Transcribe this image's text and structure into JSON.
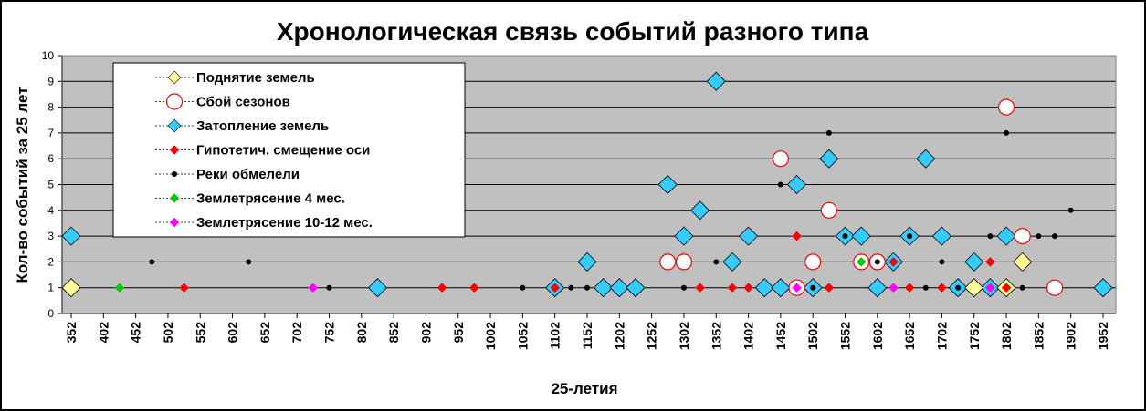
{
  "chart_data": {
    "type": "scatter",
    "title": "Хронологическая связь событий разного типа",
    "xlabel": "25-летия",
    "ylabel": "Кол-во событий за 25 лет",
    "x_categories": [
      "352",
      "402",
      "452",
      "502",
      "552",
      "602",
      "652",
      "702",
      "752",
      "802",
      "852",
      "902",
      "952",
      "1002",
      "1052",
      "1102",
      "1152",
      "1202",
      "1252",
      "1302",
      "1352",
      "1402",
      "1452",
      "1502",
      "1552",
      "1602",
      "1652",
      "1702",
      "1752",
      "1802",
      "1852",
      "1902",
      "1952"
    ],
    "x_range": [
      352,
      1952
    ],
    "ylim": [
      0,
      10
    ],
    "yticks": [
      "0",
      "1",
      "2",
      "3",
      "4",
      "5",
      "6",
      "7",
      "8",
      "9",
      "10"
    ],
    "grid": true,
    "legend_position": "top-left",
    "colors": {
      "plot_bg": "#c0c0c0",
      "rise": "#ffff99",
      "season": "#ff0000",
      "flood": "#33ccff",
      "axis_shift": "#ff0000",
      "rivers": "#000000",
      "eq4": "#00cc00",
      "eq10": "#ff00ff"
    },
    "series": [
      {
        "key": "rise",
        "name": "Поднятие земель",
        "marker": "diamond",
        "points": [
          [
            352,
            1
          ],
          [
            1752,
            1
          ],
          [
            1802,
            1
          ],
          [
            1827,
            2
          ]
        ]
      },
      {
        "key": "season",
        "name": "Сбой сезонов",
        "marker": "circle",
        "points": [
          [
            1277,
            2
          ],
          [
            1302,
            2
          ],
          [
            1452,
            6
          ],
          [
            1477,
            1
          ],
          [
            1502,
            2
          ],
          [
            1527,
            4
          ],
          [
            1577,
            2
          ],
          [
            1602,
            2
          ],
          [
            1802,
            8
          ],
          [
            1827,
            3
          ],
          [
            1877,
            1
          ]
        ]
      },
      {
        "key": "flood",
        "name": "Затопление земель",
        "marker": "diamond",
        "points": [
          [
            352,
            3
          ],
          [
            827,
            1
          ],
          [
            1102,
            1
          ],
          [
            1152,
            2
          ],
          [
            1177,
            1
          ],
          [
            1202,
            1
          ],
          [
            1227,
            1
          ],
          [
            1277,
            5
          ],
          [
            1302,
            3
          ],
          [
            1327,
            4
          ],
          [
            1352,
            9
          ],
          [
            1377,
            2
          ],
          [
            1402,
            3
          ],
          [
            1427,
            1
          ],
          [
            1452,
            1
          ],
          [
            1477,
            5
          ],
          [
            1502,
            1
          ],
          [
            1527,
            6
          ],
          [
            1552,
            3
          ],
          [
            1577,
            3
          ],
          [
            1602,
            1
          ],
          [
            1627,
            2
          ],
          [
            1652,
            3
          ],
          [
            1677,
            6
          ],
          [
            1702,
            3
          ],
          [
            1727,
            1
          ],
          [
            1752,
            2
          ],
          [
            1777,
            1
          ],
          [
            1802,
            3
          ],
          [
            1952,
            1
          ]
        ]
      },
      {
        "key": "axis_shift",
        "name": "Гипотетич. смещение оси",
        "marker": "smalldiamond",
        "points": [
          [
            527,
            1
          ],
          [
            927,
            1
          ],
          [
            977,
            1
          ],
          [
            1102,
            1
          ],
          [
            1327,
            1
          ],
          [
            1377,
            1
          ],
          [
            1402,
            1
          ],
          [
            1477,
            3
          ],
          [
            1527,
            1
          ],
          [
            1627,
            2
          ],
          [
            1652,
            1
          ],
          [
            1702,
            1
          ],
          [
            1777,
            2
          ],
          [
            1802,
            1
          ]
        ]
      },
      {
        "key": "rivers",
        "name": "Реки обмелели",
        "marker": "dot",
        "points": [
          [
            477,
            2
          ],
          [
            627,
            2
          ],
          [
            752,
            1
          ],
          [
            1052,
            1
          ],
          [
            1127,
            1
          ],
          [
            1152,
            1
          ],
          [
            1302,
            1
          ],
          [
            1352,
            2
          ],
          [
            1452,
            5
          ],
          [
            1502,
            1
          ],
          [
            1527,
            7
          ],
          [
            1552,
            3
          ],
          [
            1602,
            2
          ],
          [
            1652,
            3
          ],
          [
            1677,
            1
          ],
          [
            1702,
            2
          ],
          [
            1727,
            1
          ],
          [
            1777,
            3
          ],
          [
            1802,
            7
          ],
          [
            1827,
            1
          ],
          [
            1852,
            3
          ],
          [
            1877,
            3
          ],
          [
            1902,
            4
          ]
        ]
      },
      {
        "key": "eq4",
        "name": "Землетрясение 4 мес.",
        "marker": "smalldiamond",
        "points": [
          [
            427,
            1
          ],
          [
            1577,
            2
          ]
        ]
      },
      {
        "key": "eq10",
        "name": "Землетрясение 10-12 мес.",
        "marker": "smalldiamond",
        "points": [
          [
            727,
            1
          ],
          [
            1477,
            1
          ],
          [
            1627,
            1
          ],
          [
            1777,
            1
          ]
        ]
      }
    ]
  }
}
